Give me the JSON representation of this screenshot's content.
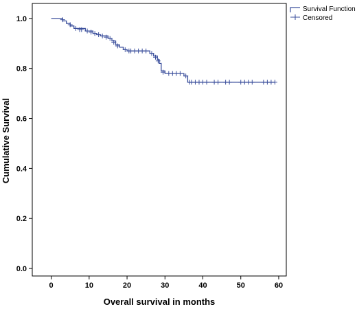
{
  "chart_data": {
    "type": "line",
    "xlabel": "Overall survival in months",
    "ylabel": "Cumulative Survival",
    "xlim": [
      -5,
      62
    ],
    "ylim": [
      -0.03,
      1.06
    ],
    "xticks": [
      0,
      10,
      20,
      30,
      40,
      50,
      60
    ],
    "yticks": [
      0.0,
      0.2,
      0.4,
      0.6,
      0.8,
      1.0
    ],
    "ytick_labels": [
      "0.0",
      "0.2",
      "0.4",
      "0.6",
      "0.8",
      "1.0"
    ],
    "legend_position": "top-right",
    "color": "#3b4f9c",
    "series": [
      {
        "name": "Survival Function",
        "style": "step",
        "points": [
          [
            0,
            1.0
          ],
          [
            3,
            0.99
          ],
          [
            4,
            0.98
          ],
          [
            5,
            0.97
          ],
          [
            6,
            0.96
          ],
          [
            9,
            0.95
          ],
          [
            11,
            0.94
          ],
          [
            12,
            0.935
          ],
          [
            13,
            0.93
          ],
          [
            15,
            0.92
          ],
          [
            16,
            0.91
          ],
          [
            17,
            0.895
          ],
          [
            18,
            0.885
          ],
          [
            19,
            0.875
          ],
          [
            20,
            0.87
          ],
          [
            26,
            0.86
          ],
          [
            27,
            0.85
          ],
          [
            28,
            0.835
          ],
          [
            28.5,
            0.82
          ],
          [
            29,
            0.79
          ],
          [
            30,
            0.78
          ],
          [
            35,
            0.77
          ],
          [
            36,
            0.745
          ],
          [
            59,
            0.745
          ]
        ]
      },
      {
        "name": "Censored",
        "style": "markers",
        "points": [
          [
            3,
            0.995
          ],
          [
            5,
            0.975
          ],
          [
            6.5,
            0.96
          ],
          [
            7.5,
            0.955
          ],
          [
            8,
            0.955
          ],
          [
            9.5,
            0.95
          ],
          [
            10.5,
            0.945
          ],
          [
            11.5,
            0.94
          ],
          [
            12.5,
            0.935
          ],
          [
            13.5,
            0.93
          ],
          [
            14.5,
            0.925
          ],
          [
            15.5,
            0.92
          ],
          [
            16.5,
            0.905
          ],
          [
            17.5,
            0.89
          ],
          [
            19.5,
            0.875
          ],
          [
            20.5,
            0.87
          ],
          [
            21,
            0.87
          ],
          [
            22,
            0.87
          ],
          [
            23,
            0.87
          ],
          [
            24,
            0.87
          ],
          [
            25,
            0.87
          ],
          [
            26.5,
            0.86
          ],
          [
            27.5,
            0.845
          ],
          [
            28.2,
            0.83
          ],
          [
            29.5,
            0.785
          ],
          [
            31,
            0.78
          ],
          [
            32,
            0.78
          ],
          [
            33,
            0.78
          ],
          [
            34,
            0.78
          ],
          [
            35.5,
            0.77
          ],
          [
            36.5,
            0.745
          ],
          [
            37,
            0.745
          ],
          [
            38,
            0.745
          ],
          [
            39,
            0.745
          ],
          [
            40,
            0.745
          ],
          [
            41,
            0.745
          ],
          [
            43,
            0.745
          ],
          [
            44,
            0.745
          ],
          [
            46,
            0.745
          ],
          [
            47,
            0.745
          ],
          [
            50,
            0.745
          ],
          [
            51,
            0.745
          ],
          [
            52,
            0.745
          ],
          [
            53,
            0.745
          ],
          [
            56,
            0.745
          ],
          [
            57,
            0.745
          ],
          [
            58,
            0.745
          ],
          [
            59,
            0.745
          ]
        ]
      }
    ]
  }
}
